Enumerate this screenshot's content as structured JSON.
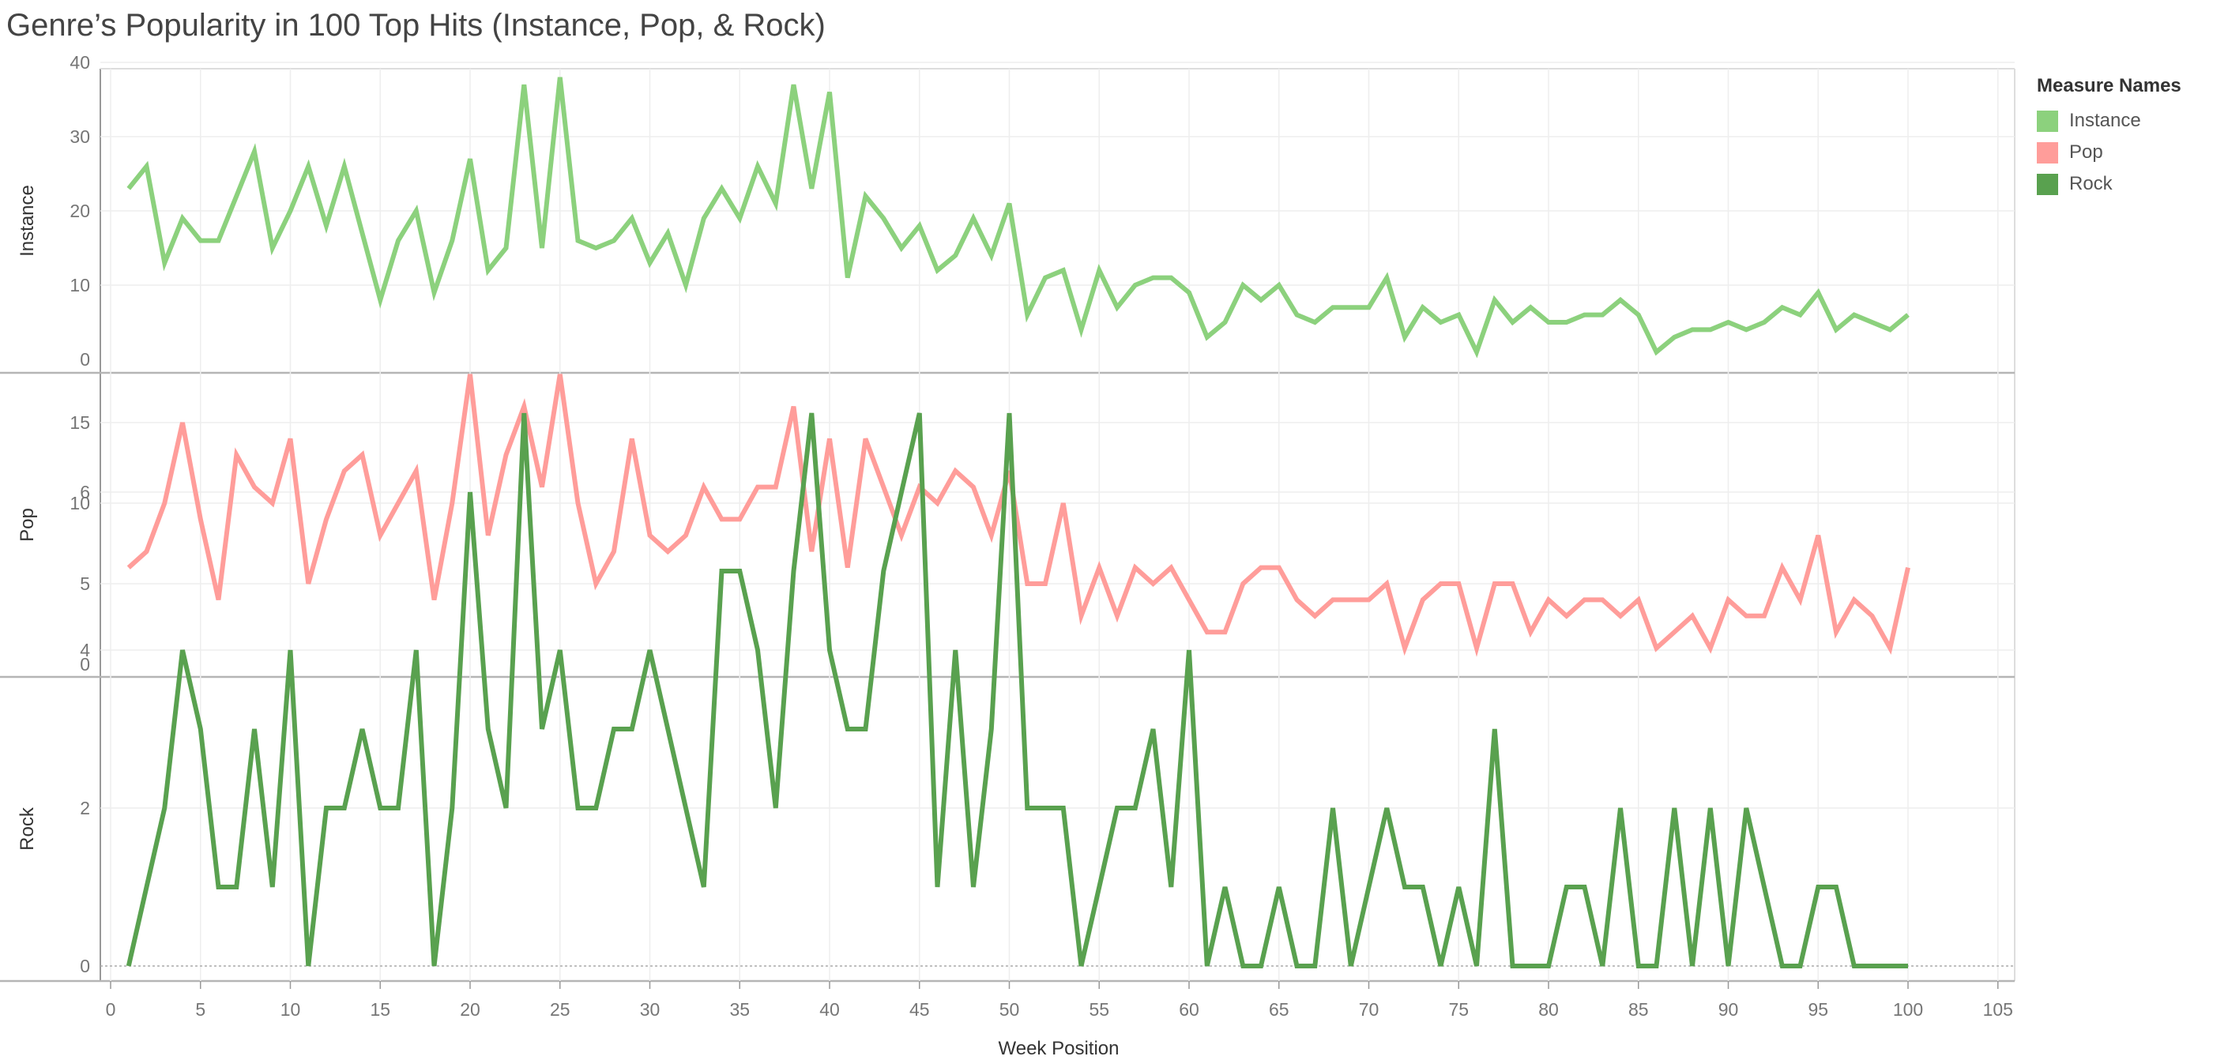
{
  "title": "Genre’s Popularity in 100 Top Hits (Instance, Pop, & Rock)",
  "legend": {
    "title": "Measure Names",
    "items": [
      {
        "label": "Instance",
        "color": "#8cd17d"
      },
      {
        "label": "Pop",
        "color": "#ff9d9a"
      },
      {
        "label": "Rock",
        "color": "#59a14f"
      }
    ]
  },
  "chart_data": {
    "type": "line",
    "title": "Genre’s Popularity in 100 Top Hits (Instance, Pop, & Rock)",
    "xlabel": "Week Position",
    "x_range": [
      0,
      105
    ],
    "x_ticks": [
      0,
      5,
      10,
      15,
      20,
      25,
      30,
      35,
      40,
      45,
      50,
      55,
      60,
      65,
      70,
      75,
      80,
      85,
      90,
      95,
      100,
      105
    ],
    "x": [
      1,
      2,
      3,
      4,
      5,
      6,
      7,
      8,
      9,
      10,
      11,
      12,
      13,
      14,
      15,
      16,
      17,
      18,
      19,
      20,
      21,
      22,
      23,
      24,
      25,
      26,
      27,
      28,
      29,
      30,
      31,
      32,
      33,
      34,
      35,
      36,
      37,
      38,
      39,
      40,
      41,
      42,
      43,
      44,
      45,
      46,
      47,
      48,
      49,
      50,
      51,
      52,
      53,
      54,
      55,
      56,
      57,
      58,
      59,
      60,
      61,
      62,
      63,
      64,
      65,
      66,
      67,
      68,
      69,
      70,
      71,
      72,
      73,
      74,
      75,
      76,
      77,
      78,
      79,
      80,
      81,
      82,
      83,
      84,
      85,
      86,
      87,
      88,
      89,
      90,
      91,
      92,
      93,
      94,
      95,
      96,
      97,
      98,
      99,
      100
    ],
    "grid": true,
    "legend_position": "top-right",
    "series": [
      {
        "name": "Instance",
        "ylabel": "Instance",
        "color": "#8cd17d",
        "ylim": [
          0,
          40
        ],
        "y_ticks": [
          0,
          10,
          20,
          30,
          40
        ],
        "values": [
          23,
          26,
          13,
          19,
          16,
          16,
          22,
          28,
          15,
          20,
          26,
          18,
          26,
          17,
          8,
          16,
          20,
          9,
          16,
          27,
          12,
          15,
          37,
          15,
          38,
          16,
          15,
          16,
          19,
          13,
          17,
          10,
          19,
          23,
          19,
          26,
          21,
          37,
          23,
          36,
          11,
          22,
          19,
          15,
          18,
          12,
          14,
          19,
          14,
          21,
          6,
          11,
          12,
          4,
          12,
          7,
          10,
          11,
          11,
          9,
          3,
          5,
          10,
          8,
          10,
          6,
          5,
          7,
          7,
          7,
          11,
          3,
          7,
          5,
          6,
          1,
          8,
          5,
          7,
          5,
          5,
          6,
          6,
          8,
          6,
          1,
          3,
          4,
          4,
          5,
          4,
          5,
          7,
          6,
          9,
          4,
          6,
          5,
          4,
          6
        ]
      },
      {
        "name": "Pop",
        "ylabel": "Pop",
        "color": "#ff9d9a",
        "ylim": [
          0,
          17
        ],
        "y_ticks": [
          0,
          5,
          10,
          15
        ],
        "values": [
          6,
          7,
          10,
          15,
          9,
          4,
          13,
          11,
          10,
          14,
          5,
          9,
          12,
          13,
          8,
          10,
          12,
          4,
          10,
          18,
          8,
          13,
          16,
          11,
          18,
          10,
          5,
          7,
          14,
          8,
          7,
          8,
          11,
          9,
          9,
          11,
          11,
          16,
          7,
          14,
          6,
          14,
          11,
          8,
          11,
          10,
          12,
          11,
          8,
          12,
          5,
          5,
          10,
          3,
          6,
          3,
          6,
          5,
          6,
          4,
          2,
          2,
          5,
          6,
          6,
          4,
          3,
          4,
          4,
          4,
          5,
          1,
          4,
          5,
          5,
          1,
          5,
          5,
          2,
          4,
          3,
          4,
          4,
          3,
          4,
          1,
          2,
          3,
          1,
          4,
          3,
          3,
          6,
          4,
          8,
          2,
          4,
          3,
          1,
          6
        ]
      },
      {
        "name": "Rock",
        "ylabel": "Rock",
        "color": "#59a14f",
        "ylim": [
          0,
          7
        ],
        "y_ticks": [
          0,
          2,
          4,
          6
        ],
        "zero_line": true,
        "values": [
          0,
          1,
          2,
          4,
          3,
          1,
          1,
          3,
          1,
          4,
          0,
          2,
          2,
          3,
          2,
          2,
          4,
          0,
          2,
          6,
          3,
          2,
          7,
          3,
          4,
          2,
          2,
          3,
          3,
          4,
          3,
          2,
          1,
          5,
          5,
          4,
          2,
          5,
          7,
          4,
          3,
          3,
          5,
          6,
          7,
          1,
          4,
          1,
          3,
          7,
          2,
          2,
          2,
          0,
          1,
          2,
          2,
          3,
          1,
          4,
          0,
          1,
          0,
          0,
          1,
          0,
          0,
          2,
          0,
          1,
          2,
          1,
          1,
          0,
          1,
          0,
          3,
          0,
          0,
          0,
          1,
          1,
          0,
          2,
          0,
          0,
          2,
          0,
          2,
          0,
          2,
          1,
          0,
          0,
          1,
          1,
          0,
          0,
          0,
          0
        ]
      }
    ]
  }
}
